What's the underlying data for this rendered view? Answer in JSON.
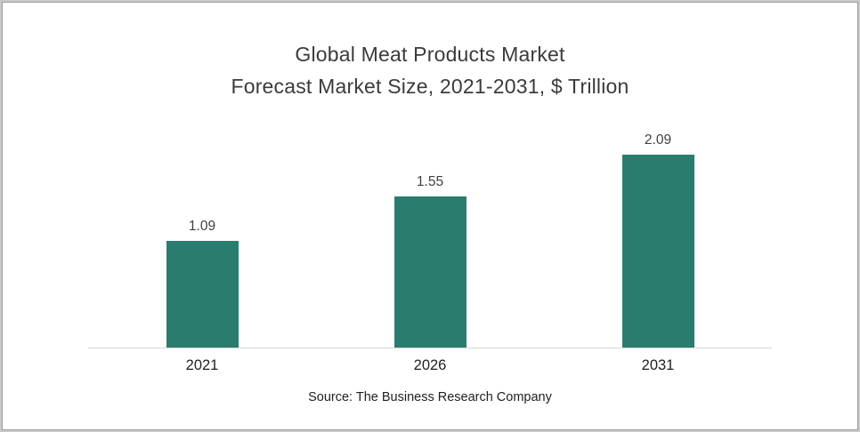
{
  "frame": {
    "title_line1": "Global Meat Products Market",
    "title_line2": "Forecast Market Size, 2021-2031, $ Trillion",
    "source": "Source: The Business Research Company"
  },
  "chart_data": {
    "type": "bar",
    "title": "Global Meat Products Market Forecast Market Size, 2021-2031, $ Trillion",
    "categories": [
      "2021",
      "2026",
      "2031"
    ],
    "values": [
      1.09,
      1.55,
      2.09
    ],
    "data_labels": [
      "1.09",
      "1.55",
      "2.09"
    ],
    "unit": "$ Trillion",
    "ylim": [
      0,
      2.2
    ],
    "bar_color": "#2a7d6e",
    "axis_line_color": "#d6d6d6",
    "grid": false,
    "legend": false,
    "y_axis_visible": false,
    "source": "Source: The Business Research Company"
  }
}
